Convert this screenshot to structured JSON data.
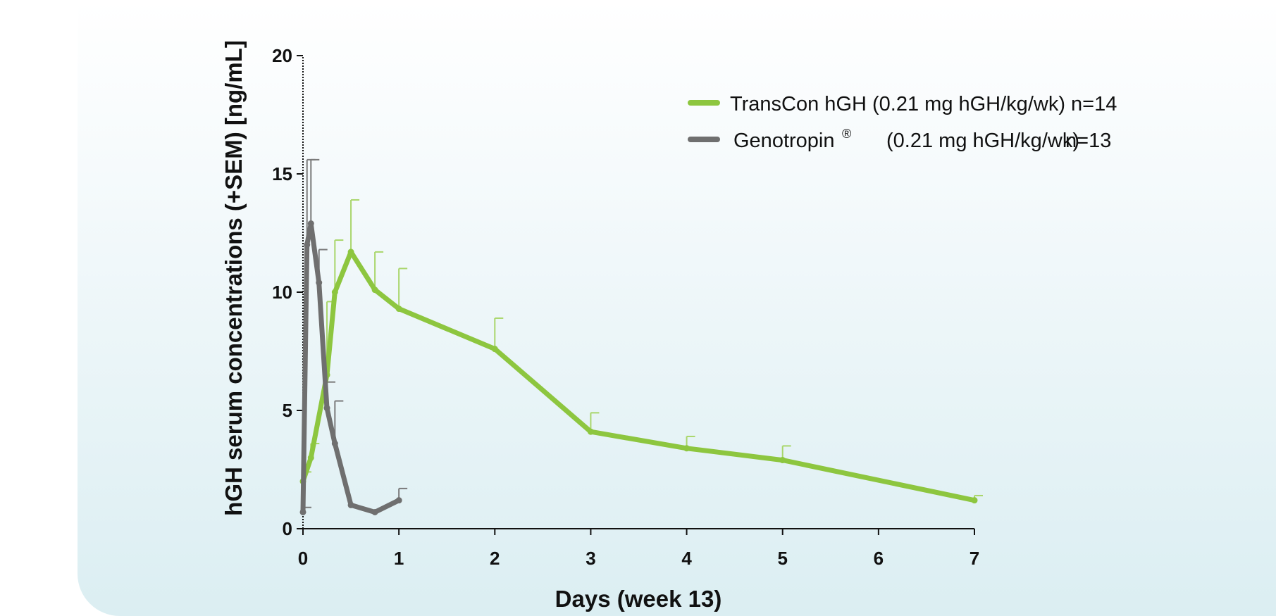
{
  "chart_data": {
    "type": "line",
    "xlabel": "Days (week 13)",
    "ylabel": "hGH serum concentrations (+SEM) [ng/mL]",
    "xlim": [
      0,
      7
    ],
    "ylim": [
      0,
      20
    ],
    "x_ticks": [
      "0",
      "1",
      "2",
      "3",
      "4",
      "5",
      "6",
      "7"
    ],
    "y_ticks": [
      "0",
      "5",
      "10",
      "15",
      "20"
    ],
    "grid": false,
    "legend_position": "top-right",
    "series": [
      {
        "name": "TransCon hGH",
        "legend_dose": "(0.21 mg hGH/kg/wk)",
        "legend_n": "n=14",
        "color": "#8dc63f",
        "errorbar_color": "#a9d66b",
        "x": [
          0,
          0.083,
          0.25,
          0.333,
          0.5,
          0.75,
          1,
          2,
          3,
          4,
          5,
          7
        ],
        "y": [
          2.0,
          3.0,
          6.5,
          10.0,
          11.7,
          10.1,
          9.3,
          7.6,
          4.1,
          3.4,
          2.9,
          1.2
        ],
        "sem_upper": [
          2.4,
          3.6,
          9.6,
          12.2,
          13.9,
          11.7,
          11.0,
          8.9,
          4.9,
          3.9,
          3.5,
          1.4
        ]
      },
      {
        "name": "Genotropin",
        "name_superscript": "®",
        "legend_dose": "(0.21 mg hGH/kg/wk)",
        "legend_n": "n=13",
        "color": "#6f6f6f",
        "errorbar_color": "#7a7a7a",
        "x": [
          0,
          0.042,
          0.083,
          0.167,
          0.25,
          0.333,
          0.5,
          0.75,
          1
        ],
        "y": [
          0.7,
          12.0,
          12.9,
          10.4,
          5.1,
          3.6,
          1.0,
          0.7,
          1.2
        ],
        "sem_upper": [
          0.9,
          15.6,
          15.6,
          11.8,
          6.2,
          5.4,
          1.0,
          0.7,
          1.7
        ]
      }
    ]
  }
}
